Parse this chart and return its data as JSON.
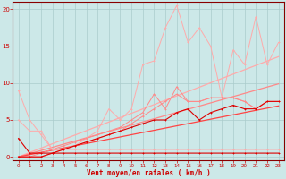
{
  "xlabel": "Vent moyen/en rafales ( km/h )",
  "background_color": "#cce8e8",
  "grid_color": "#aacccc",
  "xlim": [
    -0.5,
    23.5
  ],
  "ylim": [
    -0.5,
    21.0
  ],
  "yticks": [
    0,
    5,
    10,
    15,
    20
  ],
  "xticks": [
    0,
    1,
    2,
    3,
    4,
    5,
    6,
    7,
    8,
    9,
    10,
    11,
    12,
    13,
    14,
    15,
    16,
    17,
    18,
    19,
    20,
    21,
    22,
    23
  ],
  "x": [
    0,
    1,
    2,
    3,
    4,
    5,
    6,
    7,
    8,
    9,
    10,
    11,
    12,
    13,
    14,
    15,
    16,
    17,
    18,
    19,
    20,
    21,
    22,
    23
  ],
  "line_spiky": [
    5.0,
    3.5,
    3.5,
    1.0,
    1.0,
    1.5,
    2.5,
    3.5,
    6.5,
    5.0,
    6.5,
    12.5,
    13.0,
    17.5,
    20.5,
    15.5,
    17.5,
    15.0,
    8.0,
    14.5,
    12.5,
    19.0,
    12.5,
    15.5
  ],
  "line_med1": [
    0.0,
    0.0,
    0.5,
    1.0,
    1.5,
    2.0,
    2.5,
    3.0,
    3.5,
    4.0,
    5.0,
    6.0,
    8.5,
    6.5,
    9.5,
    7.5,
    7.5,
    8.0,
    8.0,
    8.0,
    7.5,
    6.5,
    7.5,
    7.5
  ],
  "line_med2": [
    0.0,
    0.0,
    0.0,
    0.5,
    1.0,
    1.5,
    2.0,
    2.5,
    3.0,
    3.5,
    4.5,
    5.5,
    6.5,
    7.5,
    8.5,
    7.5,
    7.5,
    8.0,
    8.0,
    8.0,
    7.5,
    6.5,
    7.5,
    7.5
  ],
  "line_low1": [
    0.0,
    0.0,
    0.0,
    0.5,
    1.0,
    1.5,
    2.0,
    2.5,
    3.0,
    3.5,
    4.0,
    4.5,
    5.0,
    5.0,
    6.0,
    6.5,
    5.0,
    6.0,
    6.5,
    7.0,
    6.5,
    6.5,
    7.5,
    7.5
  ],
  "line_vlow1": [
    2.5,
    0.5,
    0.5,
    0.5,
    0.5,
    0.5,
    0.5,
    0.5,
    0.5,
    0.5,
    0.5,
    0.5,
    0.5,
    0.5,
    0.5,
    0.5,
    0.5,
    0.5,
    0.5,
    0.5,
    0.5,
    0.5,
    0.5,
    0.5
  ],
  "line_vlow2": [
    9.0,
    5.0,
    3.0,
    1.0,
    1.0,
    1.0,
    1.0,
    1.0,
    1.0,
    1.0,
    1.0,
    1.0,
    1.0,
    1.0,
    1.0,
    1.0,
    1.0,
    1.0,
    1.0,
    1.0,
    1.0,
    1.0,
    1.0,
    1.0
  ],
  "trend1": [
    0.0,
    0.59,
    1.18,
    1.77,
    2.36,
    2.95,
    3.54,
    4.13,
    4.72,
    5.31,
    5.9,
    6.49,
    7.08,
    7.67,
    8.26,
    8.85,
    9.44,
    10.03,
    10.62,
    11.21,
    11.8,
    12.39,
    12.98,
    13.57
  ],
  "trend2": [
    0.0,
    0.43,
    0.86,
    1.29,
    1.72,
    2.15,
    2.58,
    3.01,
    3.44,
    3.87,
    4.3,
    4.73,
    5.16,
    5.59,
    6.02,
    6.45,
    6.88,
    7.31,
    7.74,
    8.17,
    8.6,
    9.03,
    9.46,
    9.89
  ],
  "trend3": [
    0.0,
    0.3,
    0.6,
    0.9,
    1.2,
    1.5,
    1.8,
    2.1,
    2.4,
    2.7,
    3.0,
    3.3,
    3.6,
    3.9,
    4.2,
    4.5,
    4.8,
    5.1,
    5.4,
    5.7,
    6.0,
    6.3,
    6.6,
    6.9
  ],
  "color_vlight": "#ffaaaa",
  "color_light": "#ff8888",
  "color_medium": "#ff4444",
  "color_dark": "#dd0000",
  "color_axis": "#cc0000",
  "color_spine": "#880000"
}
